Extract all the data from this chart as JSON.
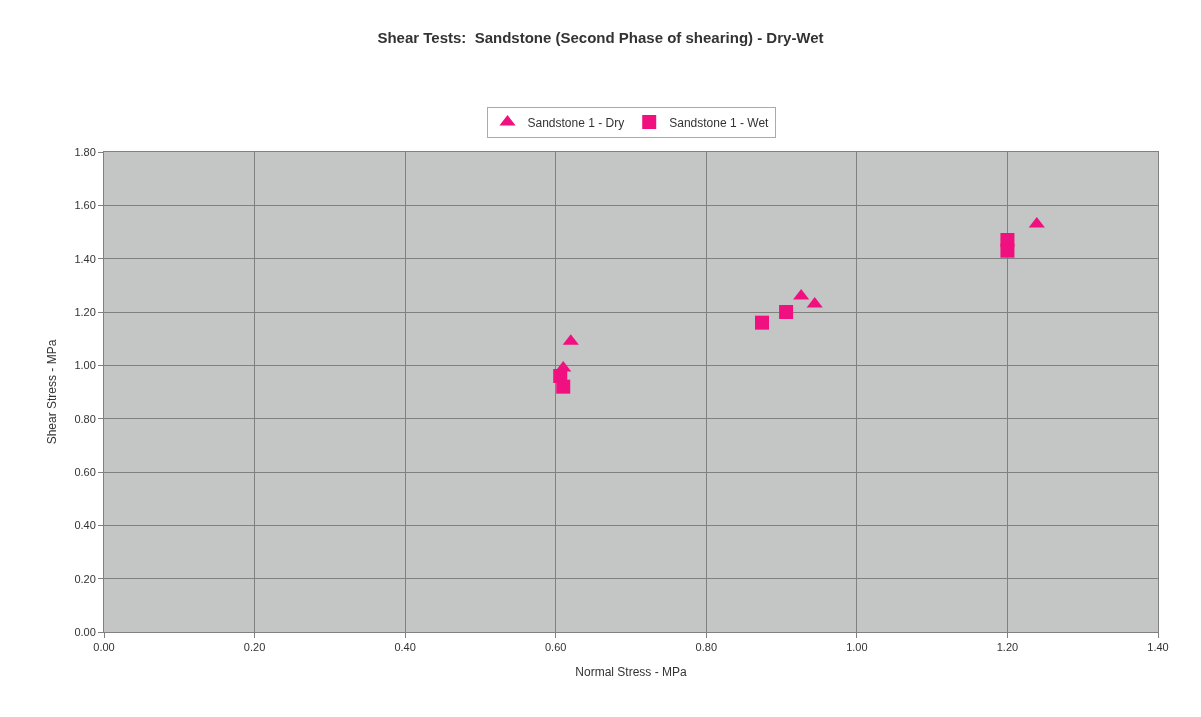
{
  "chart_data": {
    "type": "scatter",
    "title": "Shear Tests:  Sandstone (Second Phase of shearing) - Dry-Wet",
    "xlabel": "Normal Stress - MPa",
    "ylabel": "Shear Stress - MPa",
    "series": [
      {
        "name": "Sandstone 1 - Dry",
        "color": "#f0107f",
        "marker": "triangle",
        "x": [
          0.62,
          0.61,
          0.926,
          0.944,
          1.239
        ],
        "values": [
          1.09,
          0.99,
          1.26,
          1.23,
          1.53
        ]
      },
      {
        "name": "Sandstone 1 - Wet",
        "color": "#f0107f",
        "marker": "square",
        "x": [
          0.606,
          0.61,
          0.874,
          0.906,
          1.2,
          1.2
        ],
        "values": [
          0.96,
          0.92,
          1.16,
          1.2,
          1.47,
          1.43
        ]
      }
    ],
    "xlim": [
      0,
      1.4
    ],
    "xticks": [
      {
        "value": 0,
        "label": "0.00"
      },
      {
        "value": 0.2,
        "label": "0.20"
      },
      {
        "value": 0.4,
        "label": "0.40"
      },
      {
        "value": 0.6,
        "label": "0.60"
      },
      {
        "value": 0.8,
        "label": "0.80"
      },
      {
        "value": 1.0,
        "label": "1.00"
      },
      {
        "value": 1.2,
        "label": "1.20"
      },
      {
        "value": 1.4,
        "label": "1.40"
      }
    ],
    "ylim": [
      0,
      1.8
    ],
    "yticks": [
      {
        "value": 0,
        "label": "0.00"
      },
      {
        "value": 0.2,
        "label": "0.20"
      },
      {
        "value": 0.4,
        "label": "0.40"
      },
      {
        "value": 0.6,
        "label": "0.60"
      },
      {
        "value": 0.8,
        "label": "0.80"
      },
      {
        "value": 1.0,
        "label": "1.00"
      },
      {
        "value": 1.2,
        "label": "1.20"
      },
      {
        "value": 1.4,
        "label": "1.40"
      },
      {
        "value": 1.6,
        "label": "1.60"
      },
      {
        "value": 1.8,
        "label": "1.80"
      }
    ],
    "grid": true,
    "legend": "top"
  }
}
